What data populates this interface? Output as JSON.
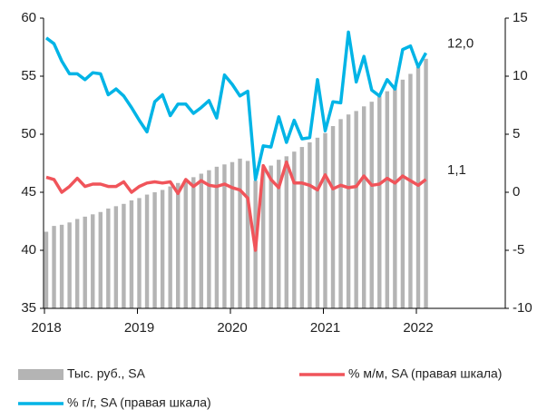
{
  "chart_data": {
    "type": "combo",
    "categories": [
      "2018",
      null,
      null,
      null,
      null,
      null,
      null,
      null,
      null,
      null,
      null,
      null,
      "2019",
      null,
      null,
      null,
      null,
      null,
      null,
      null,
      null,
      null,
      null,
      null,
      "2020",
      null,
      null,
      null,
      null,
      null,
      null,
      null,
      null,
      null,
      null,
      null,
      "2021",
      null,
      null,
      null,
      null,
      null,
      null,
      null,
      null,
      null,
      null,
      null,
      "2022",
      null
    ],
    "series": [
      {
        "name": "Тыс. руб., SA",
        "type": "bar",
        "color": "#b4b4b4",
        "values": [
          41.6,
          42.1,
          42.2,
          42.4,
          42.7,
          42.9,
          43.1,
          43.3,
          43.6,
          43.8,
          44.0,
          44.3,
          44.5,
          44.8,
          45.0,
          45.2,
          45.5,
          45.8,
          46.0,
          46.3,
          46.6,
          46.9,
          47.2,
          47.4,
          47.6,
          47.9,
          47.7,
          46.0,
          46.8,
          47.3,
          47.8,
          48.1,
          48.5,
          48.9,
          49.3,
          49.7,
          50.1,
          50.7,
          51.3,
          51.7,
          52.0,
          52.4,
          52.8,
          53.3,
          53.7,
          54.2,
          54.7,
          55.2,
          55.8,
          56.5
        ]
      },
      {
        "name": "% м/м, SA (правая шкала)",
        "type": "line",
        "axis": "y2",
        "color": "#f0545a",
        "values": [
          1.3,
          1.1,
          0.0,
          0.5,
          1.2,
          0.5,
          0.7,
          0.7,
          0.5,
          0.5,
          0.9,
          0.0,
          0.5,
          0.8,
          0.9,
          0.8,
          0.9,
          -0.1,
          1.1,
          0.5,
          1.0,
          0.6,
          0.5,
          0.7,
          0.4,
          0.2,
          -0.5,
          -5.0,
          2.3,
          1.1,
          0.4,
          2.6,
          0.8,
          0.8,
          0.6,
          0.2,
          1.5,
          0.3,
          0.6,
          0.4,
          0.5,
          1.4,
          0.6,
          0.7,
          1.2,
          0.8,
          1.4,
          1.0,
          0.6,
          1.1
        ]
      },
      {
        "name": "% г/г, SA (правая шкала)",
        "type": "line",
        "axis": "y2",
        "color": "#00b4e6",
        "values": [
          13.3,
          12.8,
          11.3,
          10.2,
          10.2,
          9.7,
          10.3,
          10.2,
          8.4,
          8.9,
          8.3,
          7.3,
          6.2,
          5.2,
          7.8,
          8.4,
          6.6,
          7.6,
          7.6,
          6.8,
          7.3,
          7.9,
          6.4,
          10.1,
          9.3,
          8.3,
          8.7,
          1.1,
          4.0,
          3.9,
          6.5,
          4.3,
          6.2,
          4.6,
          4.7,
          9.7,
          5.3,
          7.8,
          7.7,
          13.8,
          9.5,
          11.7,
          8.8,
          8.3,
          9.7,
          8.9,
          12.3,
          12.6,
          10.8,
          12.0
        ]
      }
    ],
    "annotations": [
      {
        "text": "12,0",
        "value": 12.0
      },
      {
        "text": "1,1",
        "value": 1.1
      }
    ],
    "ylim": [
      35,
      60
    ],
    "yticks": [
      35,
      40,
      45,
      50,
      55,
      60
    ],
    "y2lim": [
      -10,
      15
    ],
    "y2ticks": [
      -10,
      -5,
      0,
      5,
      10,
      15
    ]
  }
}
